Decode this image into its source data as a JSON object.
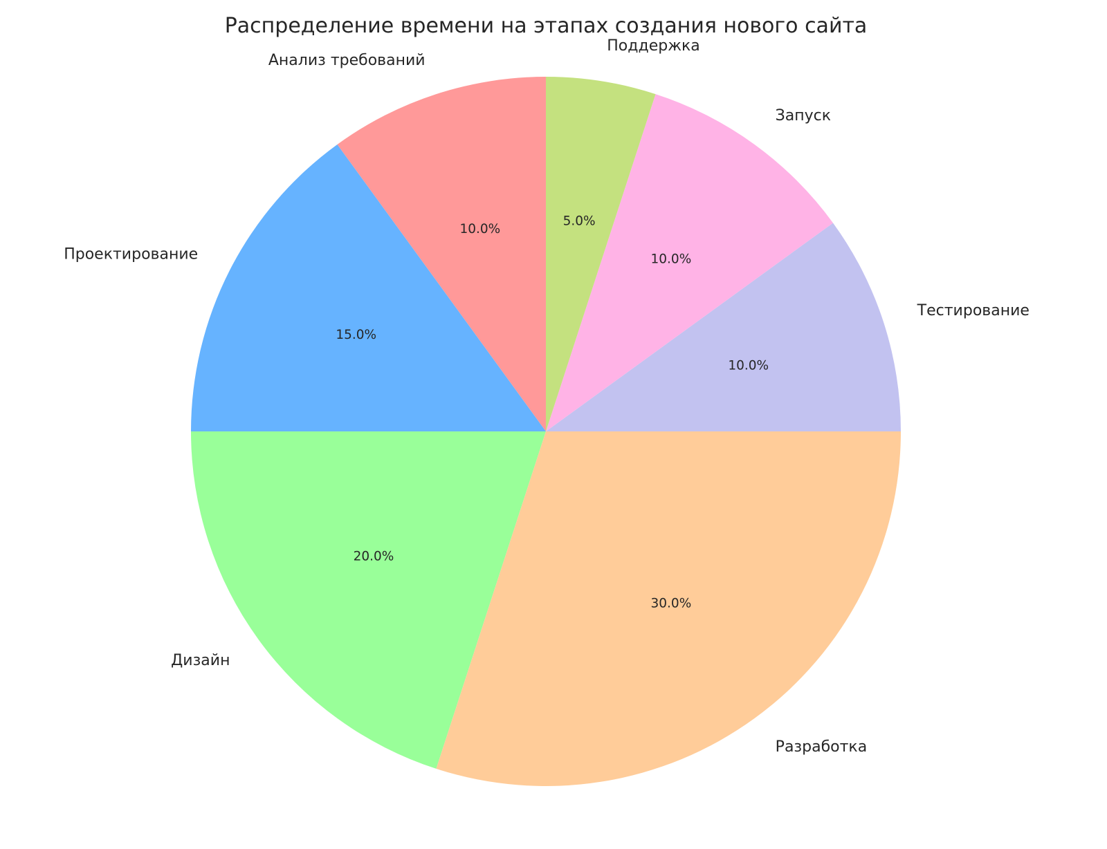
{
  "chart_data": {
    "type": "pie",
    "title": "Распределение времени на этапах создания нового сайта",
    "categories": [
      "Анализ требований",
      "Проектирование",
      "Дизайн",
      "Разработка",
      "Тестирование",
      "Запуск",
      "Поддержка"
    ],
    "values": [
      10,
      15,
      20,
      30,
      10,
      10,
      5
    ],
    "value_labels": [
      "10.0%",
      "15.0%",
      "20.0%",
      "30.0%",
      "10.0%",
      "10.0%",
      "5.0%"
    ],
    "colors": [
      "#ff9999",
      "#66b3ff",
      "#99ff99",
      "#ffcc99",
      "#c2c2f0",
      "#ffb3e6",
      "#c4e17f"
    ],
    "start_angle": 90,
    "direction": "counterclockwise",
    "legend": "none"
  }
}
